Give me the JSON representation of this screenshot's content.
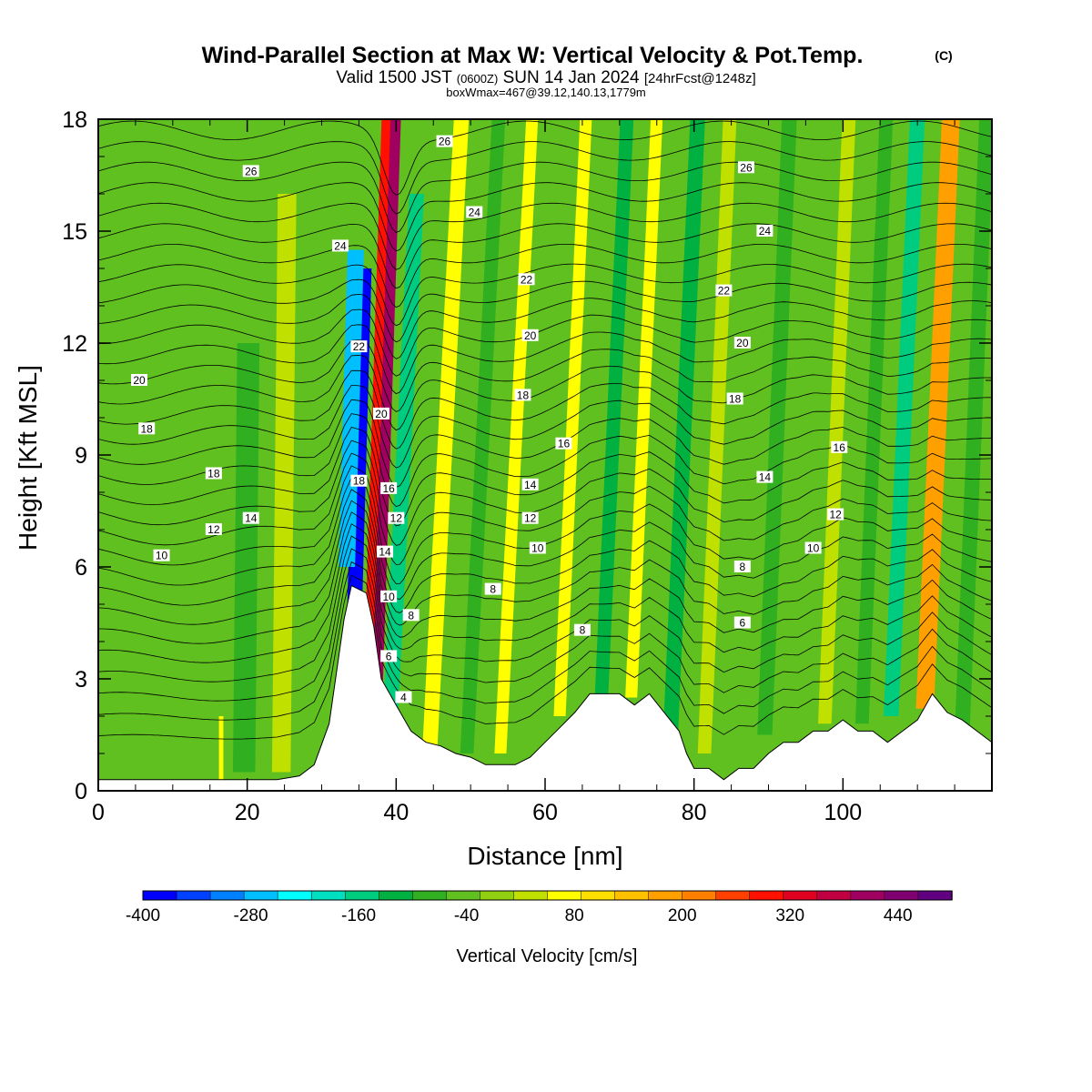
{
  "chart_data": {
    "type": "heatmap",
    "title": "Wind-Parallel Section at Max W: Vertical Velocity & Pot.Temp.",
    "title_mark": "(C)",
    "subtitle_parts": [
      "Valid 1500 JST",
      "(0600Z)",
      "SUN 14 Jan 2024",
      "[24hrFcst@1248z]"
    ],
    "subtitle2": "boxWmax=467@39.12,140.13,1779m",
    "xlabel": "Distance [nm]",
    "ylabel": "Height [Kft MSL]",
    "xlim": [
      0,
      120
    ],
    "ylim": [
      0,
      18
    ],
    "xticks": [
      0,
      20,
      40,
      60,
      80,
      100
    ],
    "yticks": [
      0,
      3,
      6,
      9,
      12,
      15,
      18
    ],
    "colorbar": {
      "title": "Vertical Velocity [cm/s]",
      "min": -400,
      "max": 500,
      "step": 40,
      "colors": [
        "#0000ff",
        "#0040ff",
        "#0080ff",
        "#00bfff",
        "#00ffff",
        "#00e0c0",
        "#00cc80",
        "#00b040",
        "#30b020",
        "#60c020",
        "#90d010",
        "#c0e000",
        "#ffff00",
        "#ffe000",
        "#ffc000",
        "#ffa000",
        "#ff8000",
        "#ff4000",
        "#ff1000",
        "#e00020",
        "#c00040",
        "#a00060",
        "#800070",
        "#600080"
      ],
      "tick_values": [
        -400,
        -280,
        -160,
        -40,
        80,
        200,
        320,
        440
      ],
      "tick_labels": [
        "-400",
        "-280",
        "-160",
        "-40",
        "80",
        "200",
        "320",
        "440"
      ]
    },
    "background_value": -20,
    "terrain_kft": [
      [
        0,
        0.3
      ],
      [
        4,
        0.3
      ],
      [
        8,
        0.3
      ],
      [
        12,
        0.3
      ],
      [
        16,
        0.3
      ],
      [
        20,
        0.3
      ],
      [
        24,
        0.3
      ],
      [
        27,
        0.4
      ],
      [
        29,
        0.7
      ],
      [
        31,
        1.8
      ],
      [
        32,
        3.2
      ],
      [
        33,
        4.6
      ],
      [
        34,
        5.5
      ],
      [
        36,
        5.3
      ],
      [
        37,
        4.4
      ],
      [
        38,
        3.0
      ],
      [
        40,
        2.3
      ],
      [
        42,
        1.6
      ],
      [
        44,
        1.3
      ],
      [
        46,
        1.2
      ],
      [
        48,
        1.0
      ],
      [
        50,
        0.9
      ],
      [
        52,
        0.7
      ],
      [
        56,
        0.7
      ],
      [
        58,
        0.9
      ],
      [
        60,
        1.3
      ],
      [
        62,
        1.7
      ],
      [
        64,
        2.1
      ],
      [
        66,
        2.6
      ],
      [
        70,
        2.6
      ],
      [
        72,
        2.3
      ],
      [
        74,
        2.6
      ],
      [
        76,
        2.1
      ],
      [
        78,
        1.6
      ],
      [
        79,
        1.0
      ],
      [
        80,
        0.6
      ],
      [
        82,
        0.6
      ],
      [
        84,
        0.3
      ],
      [
        86,
        0.6
      ],
      [
        88,
        0.6
      ],
      [
        90,
        1.0
      ],
      [
        92,
        1.3
      ],
      [
        94,
        1.3
      ],
      [
        96,
        1.6
      ],
      [
        98,
        1.6
      ],
      [
        100,
        1.9
      ],
      [
        102,
        1.6
      ],
      [
        104,
        1.6
      ],
      [
        106,
        1.3
      ],
      [
        108,
        1.6
      ],
      [
        110,
        1.9
      ],
      [
        112,
        2.6
      ],
      [
        114,
        2.1
      ],
      [
        116,
        1.9
      ],
      [
        118,
        1.6
      ],
      [
        120,
        1.3
      ]
    ],
    "w_bands": [
      {
        "x": 35.0,
        "top": 14.0,
        "bottom": 4.5,
        "w": -400,
        "width": 2.0,
        "lean": 0.14
      },
      {
        "x": 33.8,
        "top": 14.5,
        "bottom": 6.0,
        "w": -280,
        "width": 2.2,
        "lean": 0.14
      },
      {
        "x": 38.0,
        "top": 18.0,
        "bottom": 2.5,
        "w": 440,
        "width": 2.4,
        "lean": 0.16
      },
      {
        "x": 37.2,
        "top": 18.0,
        "bottom": 3.0,
        "w": 320,
        "width": 1.2,
        "lean": 0.16
      },
      {
        "x": 41.0,
        "top": 16.0,
        "bottom": 1.5,
        "w": -160,
        "width": 2.0,
        "lean": 0.25
      },
      {
        "x": 46.5,
        "top": 18.0,
        "bottom": 1.0,
        "w": 80,
        "width": 2.0,
        "lean": 0.25
      },
      {
        "x": 51.5,
        "top": 18.0,
        "bottom": 1.0,
        "w": -80,
        "width": 1.8,
        "lean": 0.25
      },
      {
        "x": 56.0,
        "top": 18.0,
        "bottom": 1.0,
        "w": 80,
        "width": 1.6,
        "lean": 0.25
      },
      {
        "x": 63.5,
        "top": 18.0,
        "bottom": 2.0,
        "w": 80,
        "width": 1.6,
        "lean": 0.22
      },
      {
        "x": 69.0,
        "top": 18.0,
        "bottom": 2.5,
        "w": -120,
        "width": 1.8,
        "lean": 0.22
      },
      {
        "x": 73.0,
        "top": 18.0,
        "bottom": 2.5,
        "w": 80,
        "width": 1.6,
        "lean": 0.22
      },
      {
        "x": 78.5,
        "top": 18.0,
        "bottom": 1.0,
        "w": -120,
        "width": 2.0,
        "lean": 0.22
      },
      {
        "x": 83.0,
        "top": 18.0,
        "bottom": 1.0,
        "w": 40,
        "width": 1.8,
        "lean": 0.2
      },
      {
        "x": 91.0,
        "top": 18.0,
        "bottom": 1.5,
        "w": -80,
        "width": 2.0,
        "lean": 0.2
      },
      {
        "x": 99.0,
        "top": 18.0,
        "bottom": 1.8,
        "w": 40,
        "width": 1.8,
        "lean": 0.2
      },
      {
        "x": 104.0,
        "top": 18.0,
        "bottom": 1.8,
        "w": -80,
        "width": 1.8,
        "lean": 0.2
      },
      {
        "x": 108.0,
        "top": 18.0,
        "bottom": 2.0,
        "w": -160,
        "width": 2.0,
        "lean": 0.22
      },
      {
        "x": 112.5,
        "top": 18.0,
        "bottom": 2.2,
        "w": 200,
        "width": 2.4,
        "lean": 0.22
      },
      {
        "x": 117.5,
        "top": 18.0,
        "bottom": 1.5,
        "w": -80,
        "width": 2.0,
        "lean": 0.2
      },
      {
        "x": 20.0,
        "top": 12.0,
        "bottom": 0.5,
        "w": -80,
        "width": 3.0,
        "lean": 0.05
      },
      {
        "x": 25.0,
        "top": 16.0,
        "bottom": 0.5,
        "w": 40,
        "width": 2.5,
        "lean": 0.05
      },
      {
        "x": 16.5,
        "top": 2.0,
        "bottom": 0.3,
        "w": 80,
        "width": 0.6,
        "lean": 0.0
      }
    ],
    "theta_labels": [
      {
        "x": 20.5,
        "y": 16.6,
        "label": "26"
      },
      {
        "x": 46.5,
        "y": 17.4,
        "label": "26"
      },
      {
        "x": 87.0,
        "y": 16.7,
        "label": "26"
      },
      {
        "x": 32.5,
        "y": 14.6,
        "label": "24"
      },
      {
        "x": 50.5,
        "y": 15.5,
        "label": "24"
      },
      {
        "x": 89.5,
        "y": 15.0,
        "label": "24"
      },
      {
        "x": 57.5,
        "y": 13.7,
        "label": "22"
      },
      {
        "x": 84.0,
        "y": 13.4,
        "label": "22"
      },
      {
        "x": 35.0,
        "y": 11.9,
        "label": "22"
      },
      {
        "x": 58.0,
        "y": 12.2,
        "label": "20"
      },
      {
        "x": 86.5,
        "y": 12.0,
        "label": "20"
      },
      {
        "x": 5.5,
        "y": 11.0,
        "label": "20"
      },
      {
        "x": 38.0,
        "y": 10.1,
        "label": "20"
      },
      {
        "x": 57.0,
        "y": 10.6,
        "label": "18"
      },
      {
        "x": 85.5,
        "y": 10.5,
        "label": "18"
      },
      {
        "x": 6.5,
        "y": 9.7,
        "label": "18"
      },
      {
        "x": 15.5,
        "y": 8.5,
        "label": "18"
      },
      {
        "x": 35.0,
        "y": 8.3,
        "label": "18"
      },
      {
        "x": 62.5,
        "y": 9.3,
        "label": "16"
      },
      {
        "x": 99.5,
        "y": 9.2,
        "label": "16"
      },
      {
        "x": 39.0,
        "y": 8.1,
        "label": "16"
      },
      {
        "x": 58.0,
        "y": 8.2,
        "label": "14"
      },
      {
        "x": 89.5,
        "y": 8.4,
        "label": "14"
      },
      {
        "x": 20.5,
        "y": 7.3,
        "label": "14"
      },
      {
        "x": 38.5,
        "y": 6.4,
        "label": "14"
      },
      {
        "x": 58.0,
        "y": 7.3,
        "label": "12"
      },
      {
        "x": 99.0,
        "y": 7.4,
        "label": "12"
      },
      {
        "x": 15.5,
        "y": 7.0,
        "label": "12"
      },
      {
        "x": 40.0,
        "y": 7.3,
        "label": "12"
      },
      {
        "x": 59.0,
        "y": 6.5,
        "label": "10"
      },
      {
        "x": 96.0,
        "y": 6.5,
        "label": "10"
      },
      {
        "x": 8.5,
        "y": 6.3,
        "label": "10"
      },
      {
        "x": 39.0,
        "y": 5.2,
        "label": "10"
      },
      {
        "x": 53.0,
        "y": 5.4,
        "label": "8"
      },
      {
        "x": 86.5,
        "y": 6.0,
        "label": "8"
      },
      {
        "x": 42.0,
        "y": 4.7,
        "label": "8"
      },
      {
        "x": 65.0,
        "y": 4.3,
        "label": "8"
      },
      {
        "x": 86.5,
        "y": 4.5,
        "label": "6"
      },
      {
        "x": 39.0,
        "y": 3.6,
        "label": "6"
      },
      {
        "x": 41.0,
        "y": 2.5,
        "label": "4"
      }
    ]
  }
}
